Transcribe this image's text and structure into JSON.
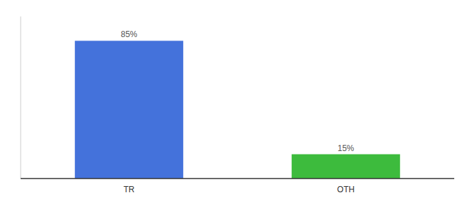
{
  "chart_data": {
    "type": "bar",
    "categories": [
      "TR",
      "OTH"
    ],
    "values": [
      85,
      15
    ],
    "value_labels": [
      "85%",
      "15%"
    ],
    "colors": [
      "#4472db",
      "#3dbb3d"
    ],
    "ylim": [
      0,
      100
    ],
    "data_labels": true,
    "tick_labels": "x"
  }
}
